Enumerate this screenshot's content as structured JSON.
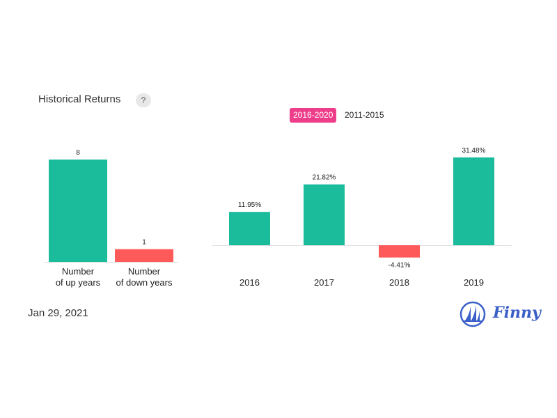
{
  "header": {
    "title": "Historical Returns",
    "help_label": "?"
  },
  "period_tabs": [
    {
      "label": "2016-2020",
      "active": true
    },
    {
      "label": "2011-2015",
      "active": false
    }
  ],
  "footer": {
    "date": "Jan 29, 2021",
    "brand": "Finny"
  },
  "colors": {
    "positive": "#1abc9c",
    "negative": "#ff5a5a",
    "accent": "#ee3d8a",
    "brand": "#3a5fc8"
  },
  "chart_data": [
    {
      "type": "bar",
      "categories": [
        [
          "Number",
          "of up years"
        ],
        [
          "Number",
          "of down years"
        ]
      ],
      "values": [
        8,
        1
      ],
      "value_labels": [
        "8",
        "1"
      ],
      "ylim": [
        0,
        8
      ]
    },
    {
      "type": "bar",
      "categories": [
        "2016",
        "2017",
        "2018",
        "2019"
      ],
      "values": [
        11.95,
        21.82,
        -4.41,
        31.48
      ],
      "value_labels": [
        "11.95%",
        "21.82%",
        "-4.41%",
        "31.48%"
      ],
      "ylabel": "",
      "ylim": [
        -4.41,
        31.48
      ]
    }
  ]
}
